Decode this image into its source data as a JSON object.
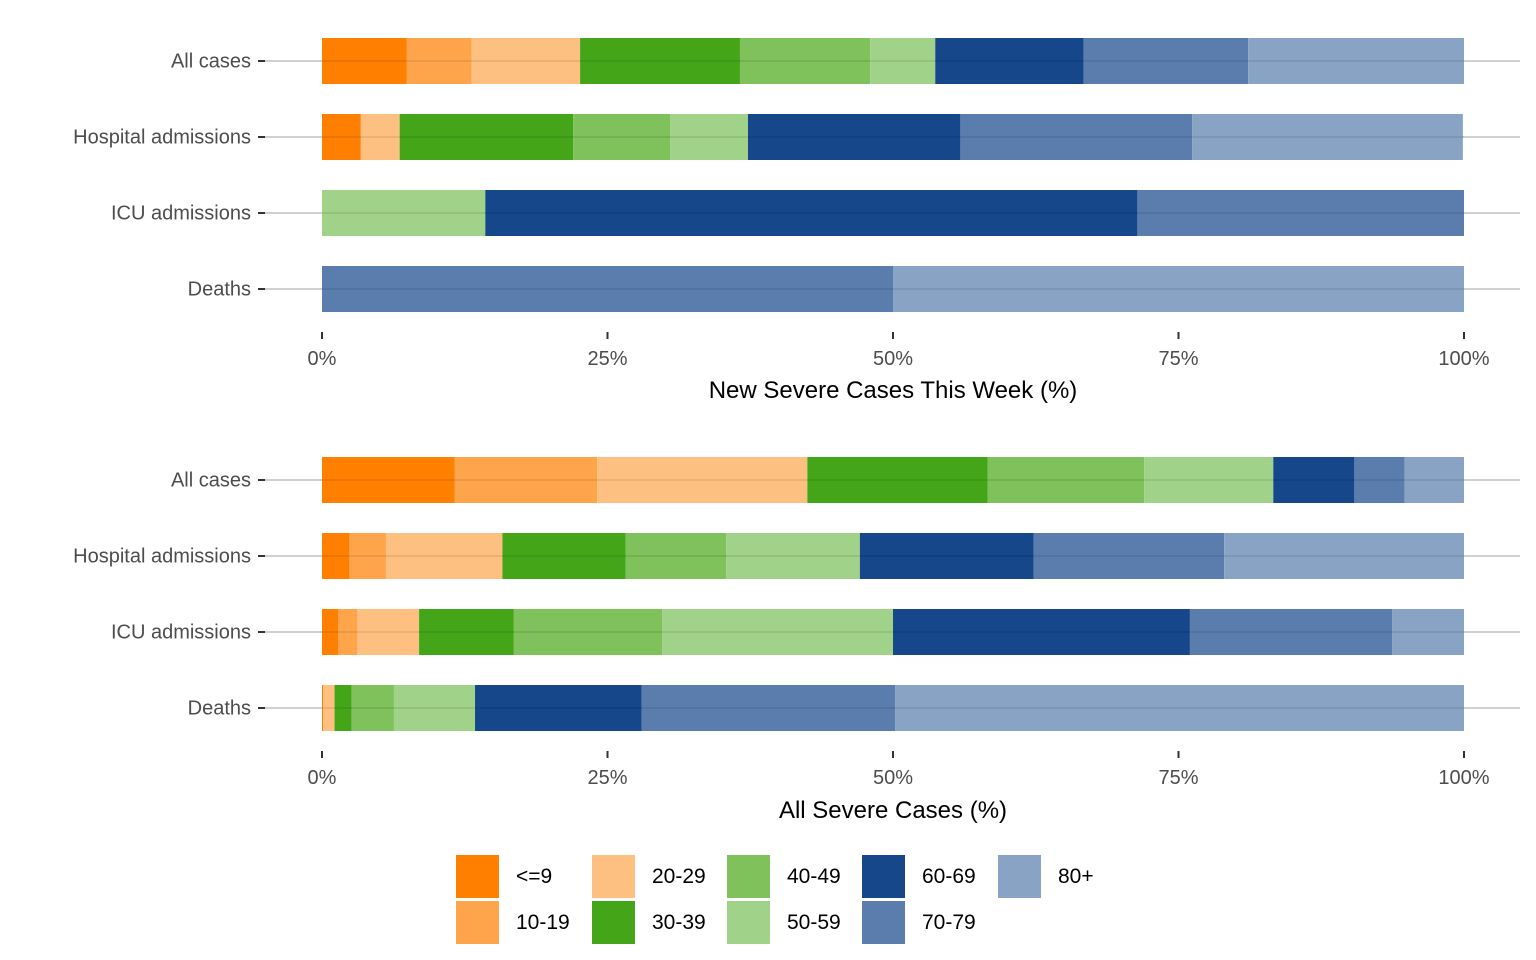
{
  "age_groups": [
    "<=9",
    "10-19",
    "20-29",
    "30-39",
    "40-49",
    "50-59",
    "60-69",
    "70-79",
    "80+"
  ],
  "colors": {
    "<=9": "#FF7F00",
    "10-19": "#FEA54B",
    "20-29": "#FEC081",
    "30-39": "#45A519",
    "40-49": "#7FC15B",
    "50-59": "#A1D28A",
    "60-69": "#15478A",
    "70-79": "#5A7DAD",
    "80+": "#89A3C5"
  },
  "chart_data": [
    {
      "type": "bar",
      "orientation": "horizontal",
      "stacked": "percent",
      "title": "",
      "xlabel": "New Severe Cases This Week (%)",
      "ylabel": "",
      "xlim": [
        0,
        100
      ],
      "xticks": [
        "0%",
        "25%",
        "50%",
        "75%",
        "100%"
      ],
      "categories": [
        "Deaths",
        "ICU admissions",
        "Hospital admissions",
        "All cases"
      ],
      "series": [
        {
          "name": "<=9",
          "values": [
            0,
            0,
            3.4,
            7.4
          ]
        },
        {
          "name": "10-19",
          "values": [
            0,
            0,
            0,
            5.7
          ]
        },
        {
          "name": "20-29",
          "values": [
            0,
            0,
            3.4,
            9.5
          ]
        },
        {
          "name": "30-39",
          "values": [
            0,
            0,
            15.2,
            14.0
          ]
        },
        {
          "name": "40-49",
          "values": [
            0,
            0,
            8.5,
            11.4
          ]
        },
        {
          "name": "50-59",
          "values": [
            0,
            14.3,
            6.8,
            5.7
          ]
        },
        {
          "name": "60-69",
          "values": [
            0,
            57.1,
            18.6,
            13.0
          ]
        },
        {
          "name": "70-79",
          "values": [
            50.0,
            28.6,
            20.3,
            14.4
          ]
        },
        {
          "name": "80+",
          "values": [
            50.0,
            0,
            23.7,
            18.9
          ]
        }
      ],
      "grid": "horizontal",
      "legend": "bottom"
    },
    {
      "type": "bar",
      "orientation": "horizontal",
      "stacked": "percent",
      "title": "",
      "xlabel": "All Severe Cases (%)",
      "ylabel": "",
      "xlim": [
        0,
        100
      ],
      "xticks": [
        "0%",
        "25%",
        "50%",
        "75%",
        "100%"
      ],
      "categories": [
        "Deaths",
        "ICU admissions",
        "Hospital admissions",
        "All cases"
      ],
      "series": [
        {
          "name": "<=9",
          "values": [
            0.1,
            1.4,
            2.4,
            11.6
          ]
        },
        {
          "name": "10-19",
          "values": [
            0,
            1.7,
            3.2,
            12.5
          ]
        },
        {
          "name": "20-29",
          "values": [
            1.0,
            5.4,
            10.2,
            18.4
          ]
        },
        {
          "name": "30-39",
          "values": [
            1.5,
            8.3,
            10.8,
            15.8
          ]
        },
        {
          "name": "40-49",
          "values": [
            3.7,
            13.0,
            8.8,
            13.7
          ]
        },
        {
          "name": "50-59",
          "values": [
            7.1,
            20.2,
            11.7,
            11.3
          ]
        },
        {
          "name": "60-69",
          "values": [
            14.6,
            26.0,
            15.2,
            7.1
          ]
        },
        {
          "name": "70-79",
          "values": [
            22.2,
            17.7,
            16.7,
            4.4
          ]
        },
        {
          "name": "80+",
          "values": [
            49.8,
            6.3,
            21.0,
            5.2
          ]
        }
      ],
      "grid": "horizontal",
      "legend": "bottom"
    }
  ],
  "legend": {
    "items": [
      "<=9",
      "10-19",
      "20-29",
      "30-39",
      "40-49",
      "50-59",
      "60-69",
      "70-79",
      "80+"
    ]
  }
}
